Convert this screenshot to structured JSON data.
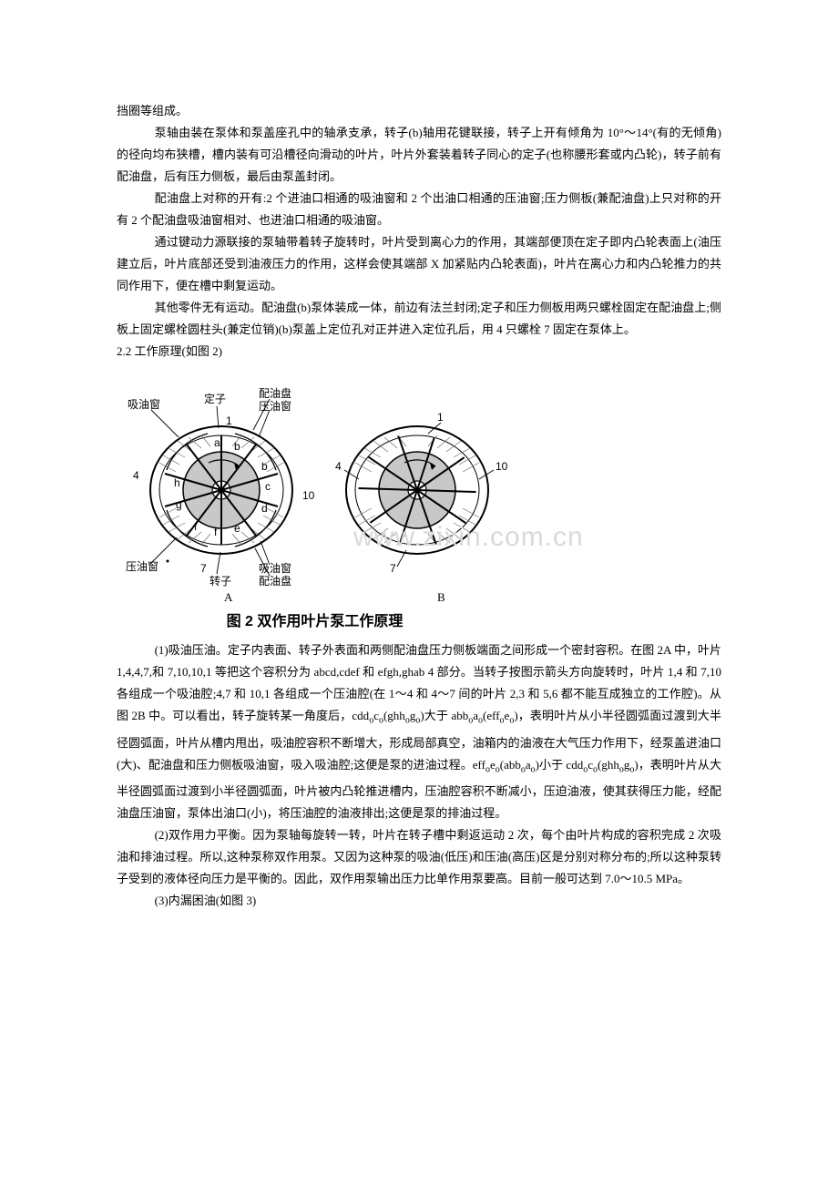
{
  "paragraphs": {
    "p0": "挡圈等组成。",
    "p1": "泵轴由装在泵体和泵盖座孔中的轴承支承，转子(b)轴用花键联接，转子上开有倾角为 10°～14°(有的无倾角)的径向均布狭槽，槽内装有可沿槽径向滑动的叶片，叶片外套装着转子同心的定子(也称腰形套或内凸轮)，转子前有配油盘，后有压力侧板，最后由泵盖封闭。",
    "p2": "配油盘上对称的开有:2 个进油口相通的吸油窗和 2 个出油口相通的压油窗;压力侧板(兼配油盘)上只对称的开有 2 个配油盘吸油窗相对、也进油口相通的吸油窗。",
    "p3": "通过键动力源联接的泵轴带着转子旋转时，叶片受到离心力的作用，其端部便顶在定子即内凸轮表面上(油压建立后，叶片底部还受到油液压力的作用，这样会使其端部 X 加紧贴内凸轮表面)，叶片在离心力和内凸轮推力的共同作用下，便在槽中剩复运动。",
    "p4": "其他零件无有运动。配油盘(b)泵体装成一体，前边有法兰封闭;定子和压力侧板用两只螺栓固定在配油盘上;侧板上固定螺栓圆柱头(兼定位销)(b)泵盖上定位孔对正并进入定位孔后，用 4 只螺栓 7 固定在泵体上。",
    "heading": "2.2   工作原理(如图 2)",
    "p5_html": "(1)吸油压油。定子内表面、转子外表面和两侧配油盘压力侧板端面之间形成一个密封容积。在图 2A 中，叶片 1,4,4,7,和 7,10,10,1 等把这个容积分为 abcd,cdef 和 efgh,ghab 4 部分。当转子按图示箭头方向旋转时，叶片 1,4 和 7,10 各组成一个吸油腔;4,7 和 10,1 各组成一个压油腔(在 1～4 和 4～7 间的叶片 2,3 和 5,6 都不能互成独立的工作腔)。从图 2B 中。可以看出，转子旋转某一角度后，cdd<span class=\"sub\">o</span>c<span class=\"sub\">o</span>(ghh<span class=\"sub\">o</span>g<span class=\"sub\">o</span>)大于 abb<span class=\"sub\">o</span>a<span class=\"sub\">o</span>(eff<span class=\"sub\">o</span>e<span class=\"sub\">o</span>)，表明叶片从小半径圆弧面过渡到大半径圆弧面，叶片从槽内甩出，吸油腔容积不断增大，形成局部真空，油箱内的油液在大气压力作用下，经泵盖进油口(大)、配油盘和压力侧板吸油窗，吸入吸油腔;这便是泵的进油过程。eff<span class=\"sub\">o</span>e<span class=\"sub\">o</span>(abb<span class=\"sub\">o</span>a<span class=\"sub\">o</span>)小于 cdd<span class=\"sub\">o</span>c<span class=\"sub\">o</span>(ghh<span class=\"sub\">o</span>g<span class=\"sub\">o</span>)，表明叶片从大半径圆弧面过渡到小半径圆弧面，叶片被内凸轮推进槽内，压油腔容积不断减小，压迫油液，使其获得压力能，经配油盘压油窗，泵体出油口(小)，将压油腔的油液排出;这便是泵的排油过程。",
    "p6": "(2)双作用力平衡。因为泵轴每旋转一转，叶片在转子槽中剩返运动 2 次，每个由叶片构成的容积完成 2 次吸油和排油过程。所以,这种泵称双作用泵。又因为这种泵的吸油(低压)和压油(高压)区是分别对称分布的;所以这种泵转子受到的液体径向压力是平衡的。因此，双作用泵输出压力比单作用泵要高。目前一般可达到 7.0～10.5 MPa。",
    "p7": "(3)内漏困油(如图 3)"
  },
  "figure": {
    "caption": "图 2   双作用叶片泵工作原理",
    "labels": {
      "suction_window_left": "吸油窗",
      "stator": "定子",
      "distribution_plate_top": "配油盘",
      "pressure_window_top": "压油窗",
      "pressure_window_left": "压油窗",
      "rotor": "转子",
      "distribution_plate_bottom": "配油盘",
      "suction_window_bottom": "吸油窗",
      "A": "A",
      "B": "B"
    },
    "numbers": [
      "1",
      "4",
      "7",
      "10"
    ],
    "inner_letters_A": [
      "a",
      "b",
      "c",
      "d",
      "e",
      "f",
      "g",
      "h"
    ],
    "colors": {
      "stroke": "#000000",
      "rotor_fill": "#c8c8c8",
      "hatch": "#6b6b6b",
      "bg": "#ffffff"
    },
    "watermark": "www.zixin.com.cn"
  }
}
